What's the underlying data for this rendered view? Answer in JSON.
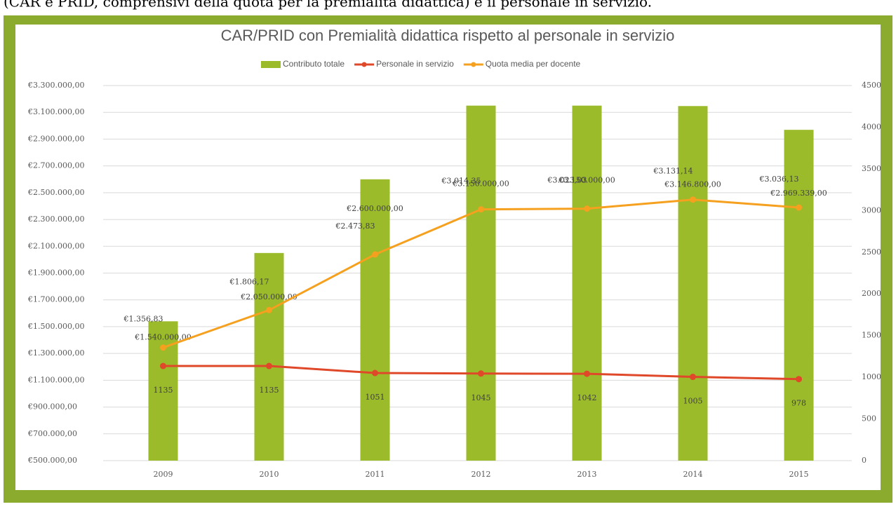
{
  "caption": "(CAR e PRID, comprensivi della quota per la premialità didattica) e il personale in servizio.",
  "chart_data": {
    "type": "bar-line",
    "title": "CAR/PRID con Premialità didattica rispetto al personale in servizio",
    "categories": [
      "2009",
      "2010",
      "2011",
      "2012",
      "2013",
      "2014",
      "2015"
    ],
    "series": [
      {
        "name": "Contributo totale",
        "type": "bar",
        "color": "#9bbb2a",
        "axis": "y",
        "values": [
          1540000,
          2050000,
          2600000,
          3150000,
          3150000,
          3146800,
          2969339
        ],
        "value_labels": [
          "€1.540.000,00",
          "€2.050.000,00",
          "€2.600.000,00",
          "€3.150.000,00",
          "€3.150.000,00",
          "€3.146.800,00",
          "€2.969.339,00"
        ]
      },
      {
        "name": "Personale in servizio",
        "type": "line",
        "color": "#e0482a",
        "axis": "y2",
        "values": [
          1135,
          1135,
          1051,
          1045,
          1042,
          1005,
          978
        ]
      },
      {
        "name": "Quota media per docente",
        "type": "line",
        "color": "#f5a01e",
        "axis": "y2",
        "values": [
          1356.83,
          1806.17,
          2473.83,
          3014.35,
          3023.03,
          3131.14,
          3036.13
        ],
        "value_labels": [
          "€1.356,83",
          "€1.806,17",
          "€2.473,83",
          "€3.014,35",
          "€3.023,03",
          "€3.131,14",
          "€3.036,13"
        ]
      }
    ],
    "ylim": [
      500000,
      3300000
    ],
    "yticks": [
      {
        "value": 500000,
        "label": "€500.000,00"
      },
      {
        "value": 700000,
        "label": "€700.000,00"
      },
      {
        "value": 900000,
        "label": "€900.000,00"
      },
      {
        "value": 1100000,
        "label": "€1.100.000,00"
      },
      {
        "value": 1300000,
        "label": "€1.300.000,00"
      },
      {
        "value": 1500000,
        "label": "€1.500.000,00"
      },
      {
        "value": 1700000,
        "label": "€1.700.000,00"
      },
      {
        "value": 1900000,
        "label": "€1.900.000,00"
      },
      {
        "value": 2100000,
        "label": "€2.100.000,00"
      },
      {
        "value": 2300000,
        "label": "€2.300.000,00"
      },
      {
        "value": 2500000,
        "label": "€2.500.000,00"
      },
      {
        "value": 2700000,
        "label": "€2.700.000,00"
      },
      {
        "value": 2900000,
        "label": "€2.900.000,00"
      },
      {
        "value": 3100000,
        "label": "€3.100.000,00"
      },
      {
        "value": 3300000,
        "label": "€3.300.000,00"
      }
    ],
    "y2lim": [
      0,
      4500
    ],
    "y2ticks": [
      0,
      500,
      1000,
      1500,
      2000,
      2500,
      3000,
      3500,
      4000,
      4500
    ],
    "grid": true,
    "legend": "top"
  }
}
